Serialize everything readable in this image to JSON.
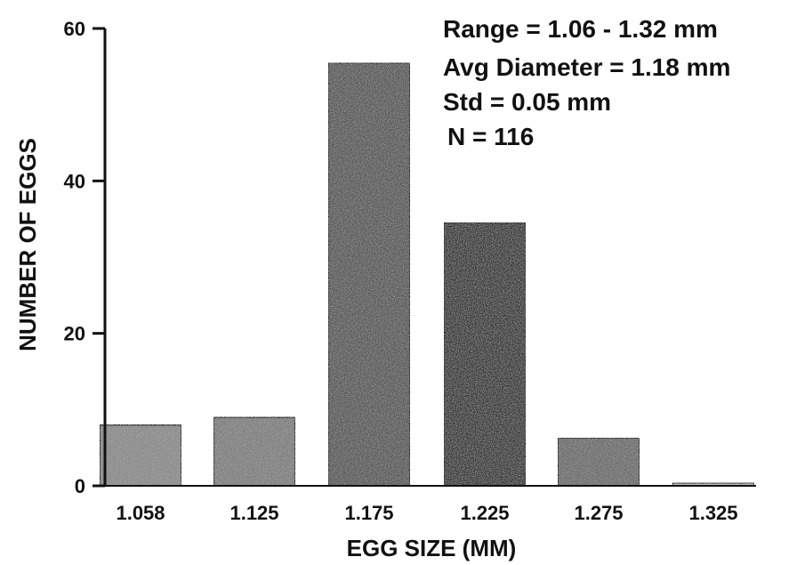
{
  "chart_data": {
    "type": "bar",
    "categories": [
      "1.058",
      "1.125",
      "1.175",
      "1.225",
      "1.275",
      "1.325"
    ],
    "values": [
      8,
      9,
      55.5,
      34.5,
      6.3,
      0.4
    ],
    "xlabel": "EGG SIZE (MM)",
    "ylabel": "NUMBER OF EGGS",
    "ylim": [
      0,
      60
    ],
    "yticks": [
      0,
      20,
      40,
      60
    ],
    "grid": false,
    "bar_colors": [
      "#8a8a8a",
      "#7e7e7e",
      "#555555",
      "#2e2e2e",
      "#6a6a6a",
      "#bcbcbc"
    ],
    "annotations": [
      "Range = 1.06 - 1.32 mm",
      "Avg Diameter = 1.18 mm",
      "Std = 0.05 mm",
      "N = 116"
    ]
  }
}
